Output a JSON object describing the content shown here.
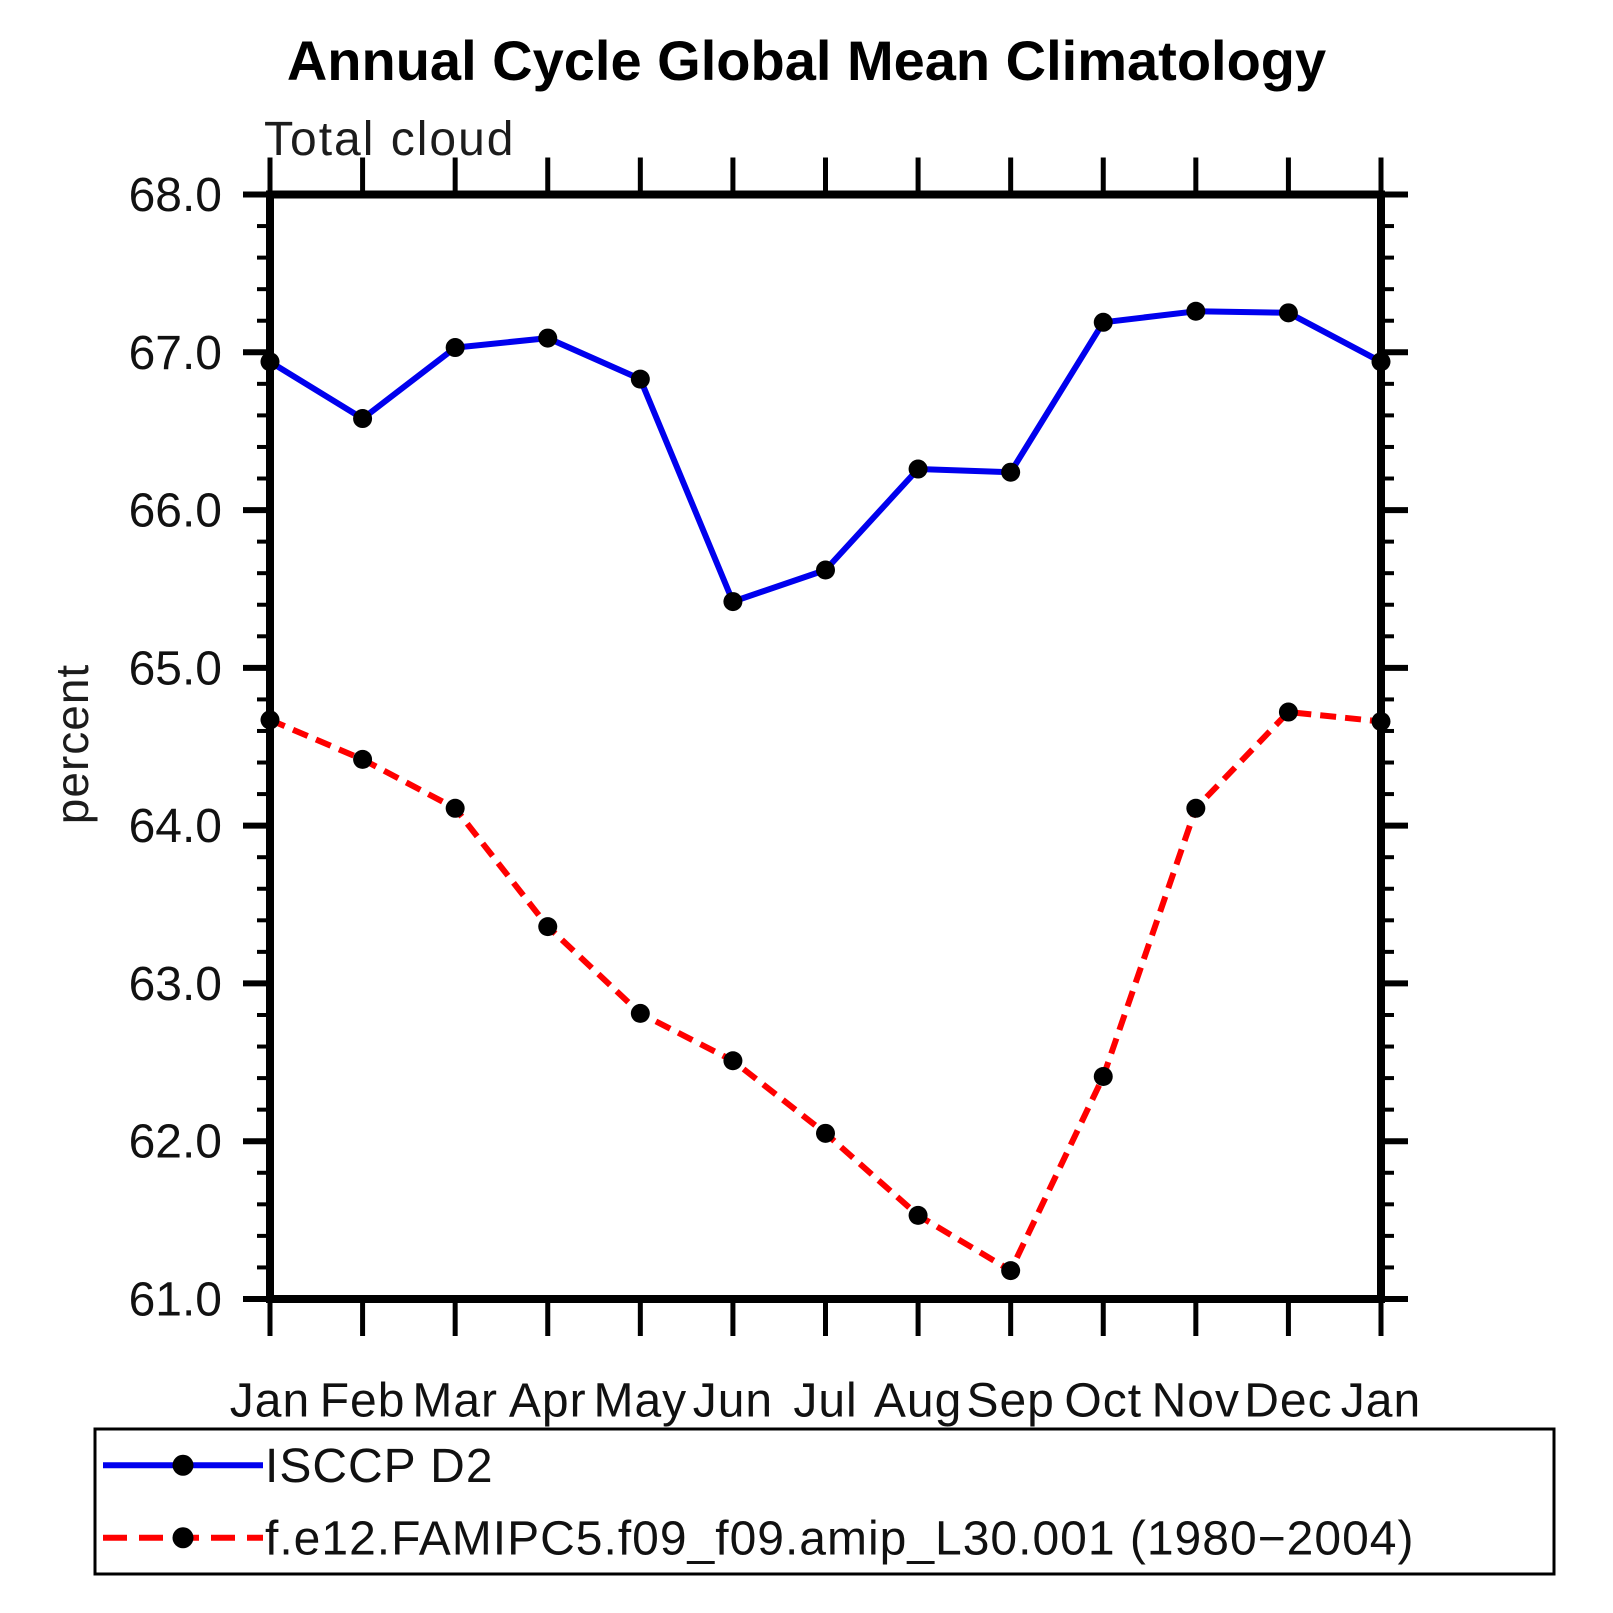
{
  "title": "Annual Cycle Global Mean Climatology",
  "subtitle": "Total cloud",
  "ylabel": "percent",
  "chart_data": {
    "type": "line",
    "title": "Annual Cycle Global Mean Climatology",
    "subtitle": "Total cloud",
    "xlabel": "",
    "ylabel": "percent",
    "x_categories": [
      "Jan",
      "Feb",
      "Mar",
      "Apr",
      "May",
      "Jun",
      "Jul",
      "Aug",
      "Sep",
      "Oct",
      "Nov",
      "Dec",
      "Jan"
    ],
    "ylim": [
      61.0,
      68.0
    ],
    "ytick_major_step": 1.0,
    "ytick_minor_step": 0.2,
    "ytick_labels": [
      "61.0",
      "62.0",
      "63.0",
      "64.0",
      "65.0",
      "66.0",
      "67.0",
      "68.0"
    ],
    "grid": false,
    "legend_position": "bottom",
    "axis_color": "#000000",
    "marker_color": "#000000",
    "series": [
      {
        "name": "ISCCP D2",
        "line_color": "#0000ee",
        "line_style": "solid",
        "values": [
          66.94,
          66.58,
          67.03,
          67.09,
          66.83,
          65.42,
          65.62,
          66.26,
          66.24,
          67.19,
          67.26,
          67.25,
          66.94
        ]
      },
      {
        "name": "f.e12.FAMIPC5.f09_f09.amip_L30.001 (1980−2004)",
        "line_color": "#ff0000",
        "line_style": "dashed",
        "values": [
          64.67,
          64.42,
          64.11,
          63.36,
          62.81,
          62.51,
          62.05,
          61.53,
          61.18,
          62.41,
          64.11,
          64.72,
          64.66
        ]
      }
    ]
  }
}
